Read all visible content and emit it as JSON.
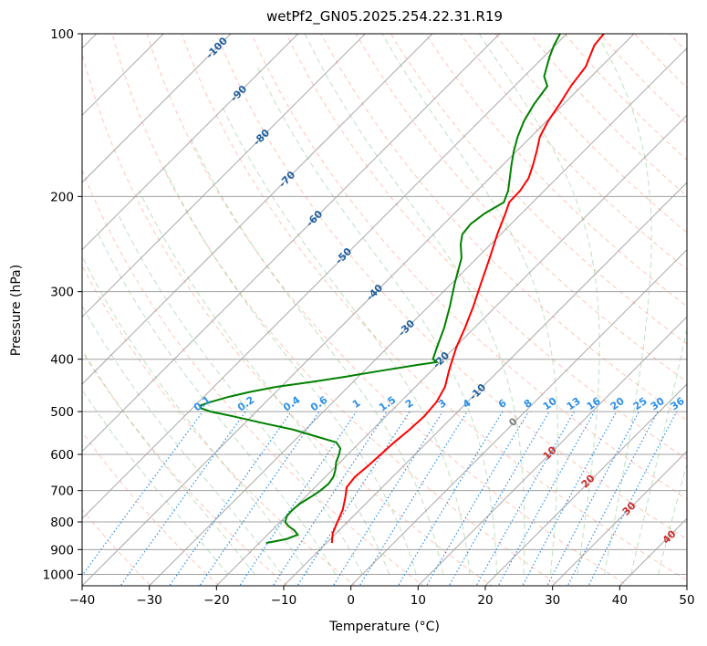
{
  "chart_data": {
    "type": "line",
    "title": "wetPf2_GN05.2025.254.22.31.R19",
    "xlabel": "Temperature (°C)",
    "ylabel": "Pressure (hPa)",
    "xlim": [
      -40,
      50
    ],
    "ylim": [
      1050,
      100
    ],
    "y_scale": "log",
    "grid": true,
    "x_ticks": [
      -40,
      -30,
      -20,
      -10,
      0,
      10,
      20,
      30,
      40,
      50
    ],
    "y_ticks": [
      100,
      200,
      300,
      400,
      500,
      600,
      700,
      800,
      900,
      1000
    ],
    "series": [
      {
        "color": "#ff0000",
        "points": [
          [
            -9.2,
            875
          ],
          [
            -10.5,
            840
          ],
          [
            -11.5,
            800
          ],
          [
            -12.5,
            760
          ],
          [
            -14.0,
            720
          ],
          [
            -15.3,
            690
          ],
          [
            -15.6,
            660
          ],
          [
            -15.3,
            630
          ],
          [
            -15.1,
            600
          ],
          [
            -14.9,
            570
          ],
          [
            -14.5,
            540
          ],
          [
            -14.3,
            510
          ],
          [
            -14.6,
            480
          ],
          [
            -15.6,
            450
          ],
          [
            -17.4,
            420
          ],
          [
            -18.3,
            405
          ],
          [
            -19.8,
            380
          ],
          [
            -21.4,
            350
          ],
          [
            -23.3,
            320
          ],
          [
            -25.6,
            290
          ],
          [
            -28.1,
            260
          ],
          [
            -30.5,
            235
          ],
          [
            -32.4,
            215
          ],
          [
            -33.5,
            205
          ],
          [
            -33.6,
            195
          ],
          [
            -34.2,
            185
          ],
          [
            -35.5,
            175
          ],
          [
            -37.0,
            165
          ],
          [
            -38.7,
            155
          ],
          [
            -39.8,
            145
          ],
          [
            -40.6,
            135
          ],
          [
            -41.6,
            125
          ],
          [
            -42.3,
            115
          ],
          [
            -44.2,
            105
          ],
          [
            -44.5,
            100
          ]
        ]
      },
      {
        "color": "#008000",
        "points": [
          [
            -19.0,
            875
          ],
          [
            -18.1,
            870
          ],
          [
            -16.5,
            860
          ],
          [
            -15.5,
            845
          ],
          [
            -16.6,
            830
          ],
          [
            -18.1,
            815
          ],
          [
            -19.3,
            800
          ],
          [
            -19.9,
            780
          ],
          [
            -20.0,
            760
          ],
          [
            -19.8,
            740
          ],
          [
            -19.2,
            720
          ],
          [
            -18.7,
            700
          ],
          [
            -18.5,
            680
          ],
          [
            -18.8,
            660
          ],
          [
            -19.6,
            640
          ],
          [
            -20.6,
            620
          ],
          [
            -21.3,
            600
          ],
          [
            -22.0,
            585
          ],
          [
            -23.5,
            570
          ],
          [
            -27.6,
            555
          ],
          [
            -31.8,
            540
          ],
          [
            -37.3,
            525
          ],
          [
            -42.8,
            510
          ],
          [
            -46.8,
            500
          ],
          [
            -48.7,
            493
          ],
          [
            -49.2,
            487
          ],
          [
            -48.2,
            480
          ],
          [
            -46.4,
            470
          ],
          [
            -43.9,
            460
          ],
          [
            -40.7,
            450
          ],
          [
            -35.9,
            440
          ],
          [
            -31.5,
            430
          ],
          [
            -27.4,
            420
          ],
          [
            -23.0,
            410
          ],
          [
            -20.5,
            405
          ],
          [
            -21.5,
            400
          ],
          [
            -22.7,
            380
          ],
          [
            -24.5,
            350
          ],
          [
            -26.8,
            320
          ],
          [
            -29.5,
            290
          ],
          [
            -32.3,
            260
          ],
          [
            -34.5,
            245
          ],
          [
            -35.7,
            235
          ],
          [
            -36.0,
            225
          ],
          [
            -35.5,
            215
          ],
          [
            -34.3,
            205
          ],
          [
            -35.4,
            195
          ],
          [
            -37.0,
            185
          ],
          [
            -38.7,
            175
          ],
          [
            -40.4,
            165
          ],
          [
            -42.0,
            155
          ],
          [
            -43.4,
            145
          ],
          [
            -44.4,
            135
          ],
          [
            -45.1,
            125
          ],
          [
            -47.0,
            120
          ],
          [
            -48.1,
            115
          ],
          [
            -49.2,
            110
          ],
          [
            -50.2,
            105
          ],
          [
            -51.0,
            100
          ]
        ]
      }
    ],
    "skew_isotherm_labels": [
      "-100",
      "-90",
      "-80",
      "-70",
      "-60",
      "-50",
      "-40",
      "-30",
      "-20",
      "-10"
    ],
    "skew_isotherm_values": [
      -100,
      -90,
      -80,
      -70,
      -60,
      -50,
      -40,
      -30,
      -20,
      -10
    ],
    "isotherm_label_color": "#1f5fa0",
    "mixing_ratio_labels": [
      "0.1",
      "0.2",
      "0.4",
      "0.6",
      "1",
      "1.5",
      "2",
      "3",
      "4",
      "6",
      "8",
      "10",
      "13",
      "16",
      "20",
      "25",
      "30",
      "36"
    ],
    "mixing_ratio_values": [
      0.1,
      0.2,
      0.4,
      0.6,
      1,
      1.5,
      2,
      3,
      4,
      6,
      8,
      10,
      13,
      16,
      20,
      25,
      30,
      36
    ],
    "mixing_ratio_color": "#2b8fe6",
    "theta_e_labels": [
      "0",
      "10",
      "20",
      "30",
      "40"
    ],
    "theta_e_values": [
      0,
      10,
      20,
      30,
      40
    ],
    "theta_e_zero_color": "#808080",
    "theta_e_color": "#cc2a2a"
  }
}
